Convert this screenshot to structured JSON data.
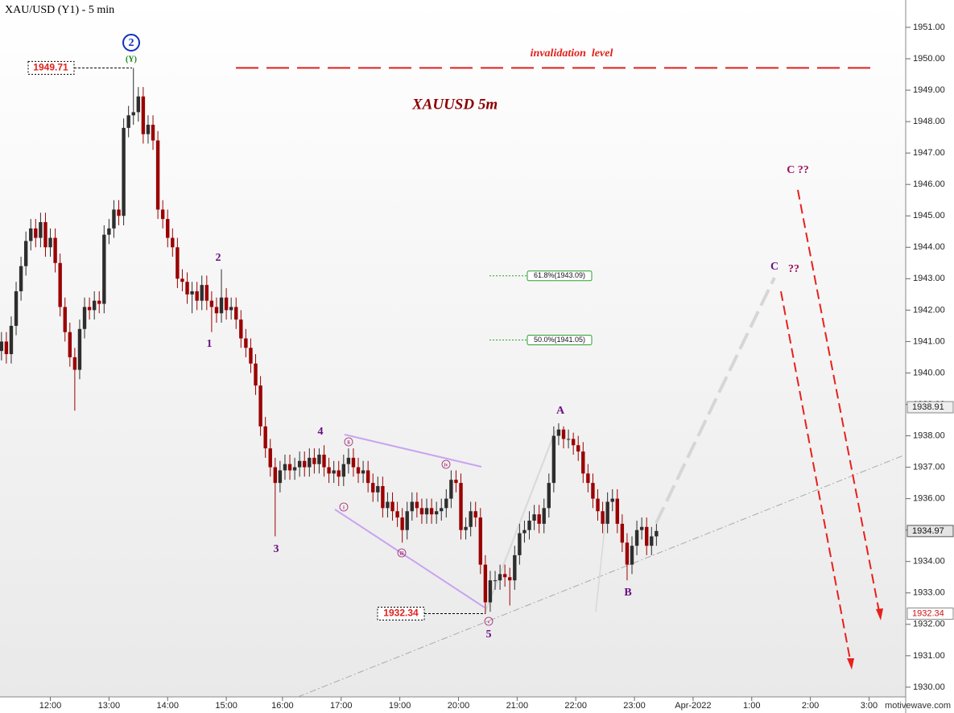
{
  "chart_data": {
    "type": "candlestick",
    "title": "XAU/USD (Y1) - 5 min",
    "colors": {
      "up": "#2e2e2e",
      "down": "#9b0000"
    },
    "x": [
      0,
      1,
      2,
      3,
      4,
      5,
      6,
      7,
      8,
      9,
      10,
      11,
      12,
      13,
      14,
      15,
      16,
      17,
      18,
      19,
      20,
      21,
      22,
      23,
      24,
      25,
      26,
      27,
      28,
      29,
      30,
      31,
      32,
      33,
      34,
      35,
      36,
      37,
      38,
      39,
      40,
      41,
      42,
      43,
      44,
      45,
      46,
      47,
      48,
      49,
      50,
      51,
      52,
      53,
      54,
      55,
      56,
      57,
      58,
      59,
      60,
      61,
      62,
      63,
      64,
      65,
      66,
      67,
      68,
      69,
      70,
      71,
      72,
      73,
      74,
      75,
      76,
      77,
      78,
      79,
      80,
      81,
      82,
      83,
      84,
      85,
      86,
      87,
      88,
      89,
      90,
      91,
      92,
      93,
      94,
      95,
      96,
      97,
      98,
      99,
      100,
      101,
      102,
      103,
      104,
      105,
      106,
      107,
      108,
      109,
      110,
      111,
      112,
      113,
      114,
      115,
      116,
      117,
      118,
      119,
      120,
      121,
      122,
      123,
      124,
      125,
      126,
      127,
      128,
      129,
      130,
      131,
      132,
      133,
      134
    ],
    "ohlc": [
      [
        1940.7,
        1941.3,
        1940.4,
        1941.0
      ],
      [
        1941.0,
        1941.3,
        1940.3,
        1940.6
      ],
      [
        1940.6,
        1941.8,
        1940.3,
        1941.5
      ],
      [
        1941.5,
        1942.9,
        1941.2,
        1942.6
      ],
      [
        1942.6,
        1943.7,
        1942.3,
        1943.4
      ],
      [
        1943.4,
        1944.5,
        1943.1,
        1944.2
      ],
      [
        1944.2,
        1944.9,
        1943.9,
        1944.6
      ],
      [
        1944.6,
        1944.9,
        1944.0,
        1944.3
      ],
      [
        1944.3,
        1945.1,
        1944.0,
        1944.8
      ],
      [
        1944.8,
        1945.1,
        1943.7,
        1944.0
      ],
      [
        1944.0,
        1944.6,
        1943.7,
        1944.3
      ],
      [
        1944.3,
        1944.6,
        1943.2,
        1943.5
      ],
      [
        1943.5,
        1943.8,
        1941.8,
        1942.1
      ],
      [
        1942.1,
        1942.4,
        1941.0,
        1941.3
      ],
      [
        1941.3,
        1941.6,
        1940.2,
        1940.5
      ],
      [
        1940.5,
        1940.8,
        1938.8,
        1940.1
      ],
      [
        1940.1,
        1941.7,
        1939.8,
        1941.4
      ],
      [
        1941.4,
        1942.4,
        1941.1,
        1942.1
      ],
      [
        1942.1,
        1942.4,
        1941.7,
        1942.0
      ],
      [
        1942.0,
        1942.6,
        1941.7,
        1942.3
      ],
      [
        1942.3,
        1942.6,
        1941.9,
        1942.2
      ],
      [
        1942.2,
        1944.7,
        1941.9,
        1944.4
      ],
      [
        1944.4,
        1944.9,
        1944.1,
        1944.6
      ],
      [
        1944.6,
        1945.5,
        1944.3,
        1945.2
      ],
      [
        1945.2,
        1945.5,
        1944.7,
        1945.0
      ],
      [
        1945.0,
        1948.1,
        1944.7,
        1947.8
      ],
      [
        1947.8,
        1948.5,
        1947.5,
        1948.2
      ],
      [
        1948.2,
        1949.71,
        1947.9,
        1948.3
      ],
      [
        1948.3,
        1949.1,
        1948.0,
        1948.8
      ],
      [
        1948.8,
        1949.1,
        1947.3,
        1947.6
      ],
      [
        1947.6,
        1948.2,
        1947.3,
        1947.9
      ],
      [
        1947.9,
        1948.2,
        1947.1,
        1947.4
      ],
      [
        1947.4,
        1947.7,
        1944.9,
        1945.2
      ],
      [
        1945.2,
        1945.5,
        1944.6,
        1944.9
      ],
      [
        1944.9,
        1945.2,
        1944.0,
        1944.3
      ],
      [
        1944.3,
        1944.6,
        1943.7,
        1944.0
      ],
      [
        1944.0,
        1944.3,
        1942.7,
        1943.0
      ],
      [
        1943.0,
        1943.3,
        1942.6,
        1942.9
      ],
      [
        1942.9,
        1943.2,
        1942.2,
        1942.5
      ],
      [
        1942.5,
        1942.9,
        1941.9,
        1942.6
      ],
      [
        1942.6,
        1942.9,
        1942.0,
        1942.3
      ],
      [
        1942.3,
        1943.1,
        1942.0,
        1942.8
      ],
      [
        1942.8,
        1943.1,
        1942.0,
        1942.3
      ],
      [
        1942.3,
        1942.6,
        1941.3,
        1942.1
      ],
      [
        1942.1,
        1942.4,
        1941.6,
        1941.9
      ],
      [
        1941.9,
        1943.3,
        1941.6,
        1942.4
      ],
      [
        1942.4,
        1942.7,
        1941.7,
        1942.0
      ],
      [
        1942.0,
        1942.4,
        1941.7,
        1942.1
      ],
      [
        1942.1,
        1942.4,
        1941.4,
        1941.7
      ],
      [
        1941.7,
        1942.0,
        1940.8,
        1941.1
      ],
      [
        1941.1,
        1941.4,
        1940.5,
        1940.8
      ],
      [
        1940.8,
        1941.1,
        1940.0,
        1940.3
      ],
      [
        1940.3,
        1940.6,
        1939.3,
        1939.6
      ],
      [
        1939.6,
        1939.9,
        1938.0,
        1938.3
      ],
      [
        1938.3,
        1938.6,
        1937.3,
        1937.6
      ],
      [
        1937.6,
        1937.9,
        1936.7,
        1937.0
      ],
      [
        1937.0,
        1937.3,
        1934.8,
        1936.5
      ],
      [
        1936.5,
        1937.2,
        1936.2,
        1936.9
      ],
      [
        1936.9,
        1937.4,
        1936.6,
        1937.1
      ],
      [
        1937.1,
        1937.4,
        1936.6,
        1936.9
      ],
      [
        1936.9,
        1937.3,
        1936.6,
        1937.0
      ],
      [
        1937.0,
        1937.5,
        1936.7,
        1937.2
      ],
      [
        1937.2,
        1937.5,
        1936.7,
        1937.0
      ],
      [
        1937.0,
        1937.6,
        1936.7,
        1937.3
      ],
      [
        1937.3,
        1937.6,
        1936.8,
        1937.1
      ],
      [
        1937.1,
        1937.6,
        1936.8,
        1937.4
      ],
      [
        1937.4,
        1937.7,
        1936.7,
        1937.0
      ],
      [
        1937.0,
        1937.3,
        1936.5,
        1936.8
      ],
      [
        1936.8,
        1937.2,
        1936.5,
        1936.9
      ],
      [
        1936.9,
        1937.2,
        1936.4,
        1936.7
      ],
      [
        1936.7,
        1937.4,
        1936.4,
        1937.1
      ],
      [
        1937.1,
        1937.6,
        1936.8,
        1937.3
      ],
      [
        1937.3,
        1937.6,
        1936.7,
        1937.0
      ],
      [
        1937.0,
        1937.3,
        1936.5,
        1936.8
      ],
      [
        1936.8,
        1937.2,
        1936.5,
        1936.9
      ],
      [
        1936.9,
        1937.2,
        1936.2,
        1936.5
      ],
      [
        1936.5,
        1936.8,
        1935.9,
        1936.2
      ],
      [
        1936.2,
        1936.7,
        1935.9,
        1936.4
      ],
      [
        1936.4,
        1936.7,
        1935.4,
        1935.7
      ],
      [
        1935.7,
        1936.2,
        1935.4,
        1935.9
      ],
      [
        1935.9,
        1936.2,
        1935.3,
        1935.6
      ],
      [
        1935.6,
        1935.9,
        1935.1,
        1935.4
      ],
      [
        1935.4,
        1935.7,
        1934.6,
        1935.0
      ],
      [
        1935.0,
        1935.9,
        1934.7,
        1935.6
      ],
      [
        1935.6,
        1936.2,
        1935.3,
        1935.9
      ],
      [
        1935.9,
        1936.2,
        1935.4,
        1935.7
      ],
      [
        1935.7,
        1936.0,
        1935.2,
        1935.5
      ],
      [
        1935.5,
        1936.0,
        1935.2,
        1935.7
      ],
      [
        1935.7,
        1936.0,
        1935.2,
        1935.5
      ],
      [
        1935.5,
        1935.9,
        1935.2,
        1935.6
      ],
      [
        1935.6,
        1936.0,
        1935.3,
        1935.7
      ],
      [
        1935.7,
        1936.3,
        1935.4,
        1936.0
      ],
      [
        1936.0,
        1936.9,
        1935.7,
        1936.6
      ],
      [
        1936.6,
        1936.9,
        1936.2,
        1936.5
      ],
      [
        1936.5,
        1936.8,
        1934.7,
        1935.0
      ],
      [
        1935.0,
        1935.4,
        1934.7,
        1935.1
      ],
      [
        1935.1,
        1935.9,
        1934.8,
        1935.6
      ],
      [
        1935.6,
        1935.9,
        1935.1,
        1935.4
      ],
      [
        1935.4,
        1935.7,
        1933.6,
        1933.9
      ],
      [
        1933.9,
        1934.2,
        1932.34,
        1932.7
      ],
      [
        1932.7,
        1933.7,
        1932.4,
        1933.4
      ],
      [
        1933.4,
        1933.7,
        1933.1,
        1933.4
      ],
      [
        1933.4,
        1933.9,
        1933.1,
        1933.6
      ],
      [
        1933.6,
        1933.9,
        1933.2,
        1933.5
      ],
      [
        1933.5,
        1933.8,
        1932.6,
        1933.4
      ],
      [
        1933.4,
        1934.5,
        1933.1,
        1934.2
      ],
      [
        1934.2,
        1935.2,
        1933.9,
        1934.9
      ],
      [
        1934.9,
        1935.3,
        1934.6,
        1935.0
      ],
      [
        1935.0,
        1935.6,
        1934.7,
        1935.3
      ],
      [
        1935.3,
        1935.8,
        1935.0,
        1935.5
      ],
      [
        1935.5,
        1935.8,
        1934.9,
        1935.2
      ],
      [
        1935.2,
        1936.0,
        1934.9,
        1935.7
      ],
      [
        1935.7,
        1936.8,
        1935.4,
        1936.5
      ],
      [
        1936.5,
        1938.3,
        1936.2,
        1938.0
      ],
      [
        1938.0,
        1938.4,
        1937.7,
        1938.2
      ],
      [
        1938.2,
        1938.3,
        1937.6,
        1937.9
      ],
      [
        1937.9,
        1938.2,
        1937.6,
        1937.9
      ],
      [
        1937.9,
        1938.1,
        1937.4,
        1937.7
      ],
      [
        1937.7,
        1938.0,
        1937.2,
        1937.5
      ],
      [
        1937.5,
        1937.8,
        1936.5,
        1936.8
      ],
      [
        1936.8,
        1937.1,
        1936.2,
        1936.5
      ],
      [
        1936.5,
        1936.8,
        1935.7,
        1936.0
      ],
      [
        1936.0,
        1936.3,
        1935.3,
        1935.6
      ],
      [
        1935.6,
        1935.9,
        1934.9,
        1935.2
      ],
      [
        1935.2,
        1936.2,
        1934.9,
        1935.9
      ],
      [
        1935.9,
        1936.3,
        1935.6,
        1936.0
      ],
      [
        1936.0,
        1936.3,
        1934.9,
        1935.2
      ],
      [
        1935.2,
        1935.5,
        1934.3,
        1934.6
      ],
      [
        1934.6,
        1934.9,
        1933.4,
        1933.9
      ],
      [
        1933.9,
        1934.8,
        1933.6,
        1934.5
      ],
      [
        1934.5,
        1935.3,
        1934.2,
        1935.0
      ],
      [
        1935.0,
        1935.4,
        1934.7,
        1935.1
      ],
      [
        1935.1,
        1935.4,
        1934.2,
        1934.5
      ],
      [
        1934.5,
        1935.1,
        1934.2,
        1934.8
      ],
      [
        1934.8,
        1935.2,
        1934.5,
        1934.97
      ]
    ],
    "xlim": [
      -0.3,
      185
    ],
    "xticks": [
      {
        "value": 10,
        "label": "12:00"
      },
      {
        "value": 22,
        "label": "13:00"
      },
      {
        "value": 34,
        "label": "14:00"
      },
      {
        "value": 46,
        "label": "15:00"
      },
      {
        "value": 57.5,
        "label": "16:00"
      },
      {
        "value": 69.5,
        "label": "17:00"
      },
      {
        "value": 81.5,
        "label": "19:00"
      },
      {
        "value": 93.5,
        "label": "20:00"
      },
      {
        "value": 105.5,
        "label": "21:00"
      },
      {
        "value": 117.5,
        "label": "22:00"
      },
      {
        "value": 129.5,
        "label": "23:00"
      },
      {
        "value": 141.5,
        "label": "Apr-2022"
      },
      {
        "value": 153.5,
        "label": "1:00"
      },
      {
        "value": 165.5,
        "label": "2:00"
      },
      {
        "value": 177.5,
        "label": "3:00"
      }
    ],
    "ylim": [
      1929.69,
      1951.87
    ],
    "yticks": [
      {
        "value": 1930,
        "label": "1930.00"
      },
      {
        "value": 1931,
        "label": "1931.00"
      },
      {
        "value": 1932,
        "label": "1932.00"
      },
      {
        "value": 1933,
        "label": "1933.00"
      },
      {
        "value": 1934,
        "label": "1934.00"
      },
      {
        "value": 1935,
        "label": "1935.00"
      },
      {
        "value": 1936,
        "label": "1936.00"
      },
      {
        "value": 1937,
        "label": "1937.00"
      },
      {
        "value": 1938,
        "label": "1938.00"
      },
      {
        "value": 1939,
        "label": "1939.00"
      },
      {
        "value": 1940,
        "label": "1940.00"
      },
      {
        "value": 1941,
        "label": "1941.00"
      },
      {
        "value": 1942,
        "label": "1942.00"
      },
      {
        "value": 1943,
        "label": "1943.00"
      },
      {
        "value": 1944,
        "label": "1944.00"
      },
      {
        "value": 1945,
        "label": "1945.00"
      },
      {
        "value": 1946,
        "label": "1946.00"
      },
      {
        "value": 1947,
        "label": "1947.00"
      },
      {
        "value": 1948,
        "label": "1948.00"
      },
      {
        "value": 1949,
        "label": "1949.00"
      },
      {
        "value": 1950,
        "label": "1950.00"
      },
      {
        "value": 1951,
        "label": "1951.00"
      }
    ],
    "price_tags": [
      1938.91,
      1934.97,
      1932.34
    ],
    "swing_high": 1949.71,
    "swing_low": 1932.34,
    "invalidation": {
      "label": "invalidation  level",
      "value": 1949.71,
      "color": "#e0201c"
    },
    "fib_levels": [
      {
        "label": "61.8%(1943.09)",
        "value": 1943.09
      },
      {
        "label": "50.0%(1941.05)",
        "value": 1941.05
      }
    ],
    "annotation": "XAUUSD   5m",
    "wave_labels": [
      {
        "text": "2",
        "color": "#1030c0"
      },
      {
        "text": "(Y)",
        "color": "#108010"
      },
      {
        "text": "1",
        "color": "#6a1080"
      },
      {
        "text": "2",
        "color": "#6a1080"
      },
      {
        "text": "3",
        "color": "#6a1080"
      },
      {
        "text": "4",
        "color": "#6a1080"
      },
      {
        "text": "5",
        "color": "#6a1080"
      },
      {
        "text": "A",
        "color": "#6a1080"
      },
      {
        "text": "B",
        "color": "#6a1080"
      },
      {
        "text": "C",
        "color": "#6a1080"
      },
      {
        "text": "??",
        "color": "#9b1060"
      },
      {
        "text": "C ??",
        "color": "#9b1060"
      },
      {
        "text": "i",
        "color": "#a02070"
      },
      {
        "text": "ii",
        "color": "#a02070"
      },
      {
        "text": "iii",
        "color": "#a02070"
      },
      {
        "text": "iv",
        "color": "#a02070"
      },
      {
        "text": "v",
        "color": "#a02070"
      }
    ],
    "watermark": "motivewave.com"
  }
}
